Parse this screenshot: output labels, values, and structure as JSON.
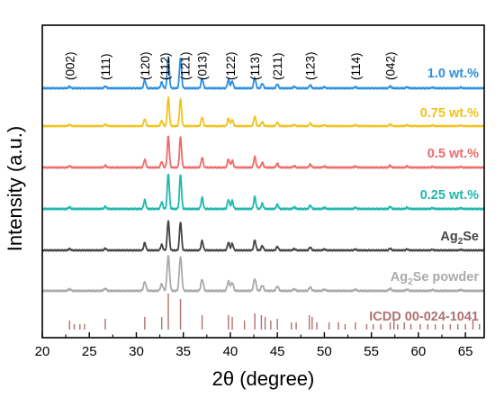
{
  "chart_data": {
    "type": "line",
    "xlabel": "2θ (degree)",
    "ylabel": "Intensity (a.u.)",
    "xlim": [
      20,
      67
    ],
    "xticks": [
      20,
      25,
      30,
      35,
      40,
      45,
      50,
      55,
      60,
      65
    ],
    "grid": false,
    "legend": "right-inline",
    "peak_labels": [
      {
        "hkl": "(002)",
        "x": 22.9
      },
      {
        "hkl": "(111)",
        "x": 26.7
      },
      {
        "hkl": "(120)",
        "x": 30.9
      },
      {
        "hkl": "(112)",
        "x": 33.4
      },
      {
        "hkl": "(121)",
        "x": 34.7
      },
      {
        "hkl": "(013)",
        "x": 37.0
      },
      {
        "hkl": "(122)",
        "x": 40.0
      },
      {
        "hkl": "(113)",
        "x": 42.6
      },
      {
        "hkl": "(211)",
        "x": 45.0
      },
      {
        "hkl": "(123)",
        "x": 48.5
      },
      {
        "hkl": "(114)",
        "x": 53.3
      },
      {
        "hkl": "(042)",
        "x": 57.0
      }
    ],
    "series": [
      {
        "name": "1.0 wt.%",
        "color": "#2c8fe0"
      },
      {
        "name": "0.75 wt.%",
        "color": "#f2c21b"
      },
      {
        "name": "0.5 wt.%",
        "color": "#ee6b6b"
      },
      {
        "name": "0.25 wt.%",
        "color": "#1fb8ad"
      },
      {
        "name": "Ag2Se",
        "color": "#444444"
      },
      {
        "name": "Ag2Se powder",
        "color": "#aaaaaa"
      }
    ],
    "peaks": [
      {
        "x": 22.9,
        "rel": 0.04
      },
      {
        "x": 26.7,
        "rel": 0.05
      },
      {
        "x": 30.9,
        "rel": 0.2
      },
      {
        "x": 32.7,
        "rel": 0.15
      },
      {
        "x": 33.4,
        "rel": 0.78
      },
      {
        "x": 34.7,
        "rel": 0.75
      },
      {
        "x": 37.0,
        "rel": 0.25
      },
      {
        "x": 39.8,
        "rel": 0.21
      },
      {
        "x": 40.2,
        "rel": 0.18
      },
      {
        "x": 42.6,
        "rel": 0.27
      },
      {
        "x": 43.4,
        "rel": 0.12
      },
      {
        "x": 45.0,
        "rel": 0.1
      },
      {
        "x": 46.8,
        "rel": 0.04
      },
      {
        "x": 48.5,
        "rel": 0.08
      },
      {
        "x": 50.0,
        "rel": 0.03
      },
      {
        "x": 53.3,
        "rel": 0.03
      },
      {
        "x": 57.0,
        "rel": 0.05
      },
      {
        "x": 58.8,
        "rel": 0.03
      },
      {
        "x": 61.5,
        "rel": 0.02
      },
      {
        "x": 64.5,
        "rel": 0.02
      }
    ],
    "reference": {
      "name": "ICDD 00-024-1041",
      "color": "#b07070",
      "sticks": [
        {
          "x": 22.9,
          "rel": 0.25
        },
        {
          "x": 23.4,
          "rel": 0.15
        },
        {
          "x": 24.0,
          "rel": 0.15
        },
        {
          "x": 24.5,
          "rel": 0.15
        },
        {
          "x": 26.7,
          "rel": 0.3
        },
        {
          "x": 30.9,
          "rel": 0.35
        },
        {
          "x": 32.7,
          "rel": 0.35
        },
        {
          "x": 33.4,
          "rel": 1.0
        },
        {
          "x": 34.7,
          "rel": 0.85
        },
        {
          "x": 37.0,
          "rel": 0.4
        },
        {
          "x": 39.8,
          "rel": 0.4
        },
        {
          "x": 40.2,
          "rel": 0.35
        },
        {
          "x": 41.5,
          "rel": 0.25
        },
        {
          "x": 42.6,
          "rel": 0.45
        },
        {
          "x": 43.3,
          "rel": 0.4
        },
        {
          "x": 43.7,
          "rel": 0.35
        },
        {
          "x": 44.3,
          "rel": 0.25
        },
        {
          "x": 45.0,
          "rel": 0.3
        },
        {
          "x": 46.5,
          "rel": 0.2
        },
        {
          "x": 47.0,
          "rel": 0.2
        },
        {
          "x": 48.4,
          "rel": 0.4
        },
        {
          "x": 48.7,
          "rel": 0.35
        },
        {
          "x": 49.2,
          "rel": 0.2
        },
        {
          "x": 50.5,
          "rel": 0.2
        },
        {
          "x": 51.5,
          "rel": 0.2
        },
        {
          "x": 52.2,
          "rel": 0.15
        },
        {
          "x": 53.3,
          "rel": 0.2
        },
        {
          "x": 54.5,
          "rel": 0.15
        },
        {
          "x": 55.2,
          "rel": 0.15
        },
        {
          "x": 56.0,
          "rel": 0.15
        },
        {
          "x": 57.0,
          "rel": 0.2
        },
        {
          "x": 57.4,
          "rel": 0.25
        },
        {
          "x": 57.8,
          "rel": 0.15
        },
        {
          "x": 58.5,
          "rel": 0.2
        },
        {
          "x": 59.2,
          "rel": 0.15
        },
        {
          "x": 60.2,
          "rel": 0.15
        },
        {
          "x": 61.0,
          "rel": 0.15
        },
        {
          "x": 61.8,
          "rel": 0.15
        },
        {
          "x": 62.6,
          "rel": 0.15
        },
        {
          "x": 63.4,
          "rel": 0.15
        },
        {
          "x": 64.2,
          "rel": 0.15
        },
        {
          "x": 65.0,
          "rel": 0.15
        },
        {
          "x": 65.8,
          "rel": 0.25
        },
        {
          "x": 66.5,
          "rel": 0.15
        }
      ]
    }
  }
}
